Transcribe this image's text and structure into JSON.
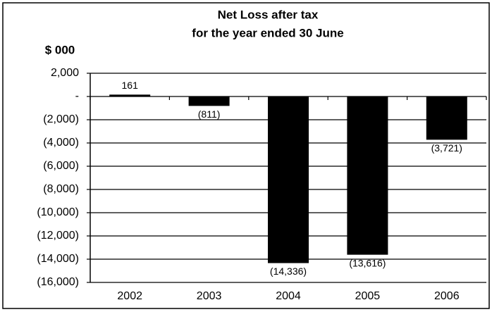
{
  "chart_data": {
    "type": "bar",
    "title": "Net Loss after tax",
    "subtitle": "for the year ended 30 June",
    "y_axis_label": "$ 000",
    "categories": [
      "2002",
      "2003",
      "2004",
      "2005",
      "2006"
    ],
    "values": [
      161,
      -811,
      -14336,
      -13616,
      -3721
    ],
    "value_labels": [
      "161",
      "(811)",
      "(14,336)",
      "(13,616)",
      "(3,721)"
    ],
    "color": "#000000",
    "ylim": [
      -16000,
      2000
    ],
    "yticks": [
      {
        "value": 2000,
        "label": "2,000"
      },
      {
        "value": 0,
        "label": "-"
      },
      {
        "value": -2000,
        "label": "(2,000)"
      },
      {
        "value": -4000,
        "label": "(4,000)"
      },
      {
        "value": -6000,
        "label": "(6,000)"
      },
      {
        "value": -8000,
        "label": "(8,000)"
      },
      {
        "value": -10000,
        "label": "(10,000)"
      },
      {
        "value": -12000,
        "label": "(12,000)"
      },
      {
        "value": -14000,
        "label": "(14,000)"
      },
      {
        "value": -16000,
        "label": "(16,000)"
      }
    ],
    "grid": true
  }
}
